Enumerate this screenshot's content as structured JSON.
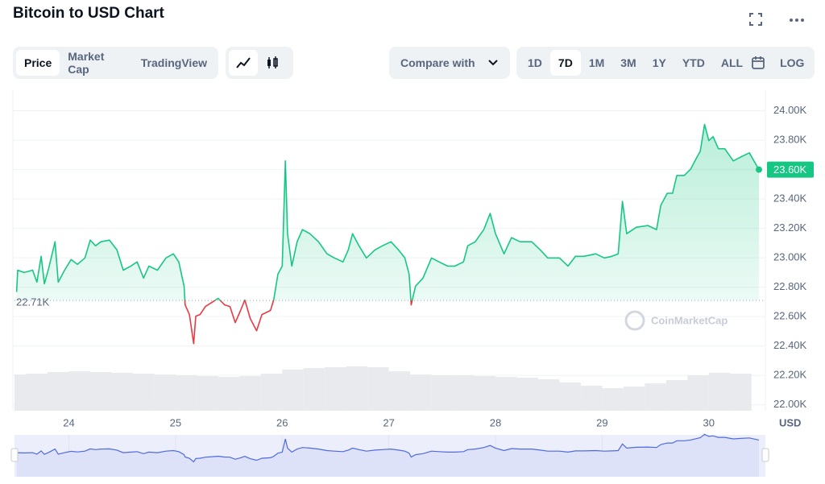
{
  "header": {
    "title": "Bitcoin to USD Chart"
  },
  "toolbar": {
    "tabs": [
      "Price",
      "Market Cap",
      "TradingView"
    ],
    "active_tab": 0,
    "compare": "Compare with",
    "ranges": [
      "1D",
      "7D",
      "1M",
      "3M",
      "1Y",
      "YTD",
      "ALL"
    ],
    "active_range": 1,
    "log": "LOG"
  },
  "chart_data": {
    "type": "area",
    "color": "#16c784",
    "down_color": "#ea3943",
    "x": [
      23.51,
      23.52,
      23.58,
      23.66,
      23.7,
      23.74,
      23.77,
      23.81,
      23.87,
      23.9,
      23.96,
      24.02,
      24.08,
      24.15,
      24.2,
      24.25,
      24.3,
      24.38,
      24.45,
      24.51,
      24.58,
      24.64,
      24.7,
      24.75,
      24.83,
      24.91,
      24.98,
      25.03,
      25.08,
      25.09,
      25.13,
      25.17,
      25.19,
      25.23,
      25.28,
      25.34,
      25.4,
      25.46,
      25.51,
      25.56,
      25.61,
      25.65,
      25.7,
      25.76,
      25.81,
      25.89,
      25.92,
      25.96,
      26.0,
      26.03,
      26.05,
      26.09,
      26.14,
      26.19,
      26.26,
      26.34,
      26.42,
      26.49,
      26.57,
      26.62,
      26.66,
      26.72,
      26.79,
      26.87,
      26.94,
      27.02,
      27.09,
      27.15,
      27.19,
      27.21,
      27.25,
      27.32,
      27.4,
      27.47,
      27.55,
      27.62,
      27.7,
      27.74,
      27.81,
      27.89,
      27.95,
      28.0,
      28.08,
      28.15,
      28.23,
      28.34,
      28.42,
      28.49,
      28.6,
      28.68,
      28.75,
      28.83,
      28.94,
      29.02,
      29.09,
      29.15,
      29.19,
      29.23,
      29.32,
      29.43,
      29.51,
      29.55,
      29.61,
      29.66,
      29.7,
      29.77,
      29.83,
      29.89,
      29.92,
      29.96,
      30.0,
      30.04,
      30.09,
      30.15,
      30.23,
      30.3,
      30.38,
      30.47
    ],
    "values": [
      22768,
      22916,
      22900,
      22916,
      22834,
      23010,
      22823,
      22928,
      23109,
      22834,
      22916,
      22988,
      22955,
      22999,
      23120,
      23082,
      23109,
      23120,
      23054,
      22916,
      22944,
      22972,
      22862,
      22944,
      22916,
      22999,
      23027,
      22972,
      22807,
      22680,
      22614,
      22416,
      22603,
      22614,
      22669,
      22696,
      22724,
      22680,
      22669,
      22559,
      22642,
      22713,
      22587,
      22504,
      22614,
      22642,
      22713,
      22889,
      22944,
      23659,
      23164,
      22944,
      23109,
      23192,
      23164,
      23109,
      23027,
      22999,
      22972,
      23054,
      23164,
      23082,
      22999,
      23054,
      23082,
      23109,
      23054,
      22999,
      22889,
      22680,
      22807,
      22862,
      22999,
      22972,
      22944,
      22944,
      22972,
      23082,
      23109,
      23192,
      23302,
      23164,
      23027,
      23137,
      23109,
      23109,
      23054,
      22999,
      22999,
      22944,
      23010,
      23010,
      23027,
      22999,
      23010,
      23027,
      23384,
      23164,
      23208,
      23219,
      23192,
      23357,
      23439,
      23439,
      23560,
      23560,
      23604,
      23686,
      23725,
      23907,
      23797,
      23824,
      23742,
      23742,
      23659,
      23686,
      23714,
      23600
    ],
    "xlim": [
      23.49,
      30.47
    ],
    "xticks": [
      24,
      25,
      26,
      27,
      28,
      29,
      30
    ],
    "ylim": [
      21960,
      24140
    ],
    "yticks": [
      {
        "value": 22000,
        "label": "22.00K"
      },
      {
        "value": 22200,
        "label": "22.20K"
      },
      {
        "value": 22400,
        "label": "22.40K"
      },
      {
        "value": 22600,
        "label": "22.60K"
      },
      {
        "value": 22800,
        "label": "22.80K"
      },
      {
        "value": 23000,
        "label": "23.00K"
      },
      {
        "value": 23200,
        "label": "23.20K"
      },
      {
        "value": 23400,
        "label": "23.40K"
      },
      {
        "value": 23600,
        "label": "23.60K"
      },
      {
        "value": 23800,
        "label": "23.80K"
      },
      {
        "value": 24000,
        "label": "24.00K"
      }
    ],
    "grid": true,
    "baseline": {
      "value": 22710,
      "label": "22.71K"
    },
    "current": {
      "value": 23600,
      "label": "23.60K"
    },
    "unit": "USD",
    "watermark": "CoinMarketCap",
    "volume": {
      "x": [
        23.5,
        23.7,
        23.9,
        24.1,
        24.3,
        24.5,
        24.7,
        24.9,
        25.1,
        25.3,
        25.5,
        25.7,
        25.9,
        26.1,
        26.3,
        26.5,
        26.7,
        26.9,
        27.1,
        27.3,
        27.5,
        27.7,
        27.9,
        28.1,
        28.3,
        28.5,
        28.7,
        28.9,
        29.1,
        29.3,
        29.5,
        29.7,
        29.9,
        30.1,
        30.3
      ],
      "values": [
        45,
        46,
        48,
        49,
        48,
        47,
        46,
        45,
        44,
        43,
        42,
        43,
        46,
        51,
        53,
        54,
        55,
        54,
        49,
        45,
        44,
        44,
        43,
        42,
        41,
        39,
        35,
        31,
        28,
        30,
        34,
        38,
        44,
        47,
        46
      ]
    }
  }
}
